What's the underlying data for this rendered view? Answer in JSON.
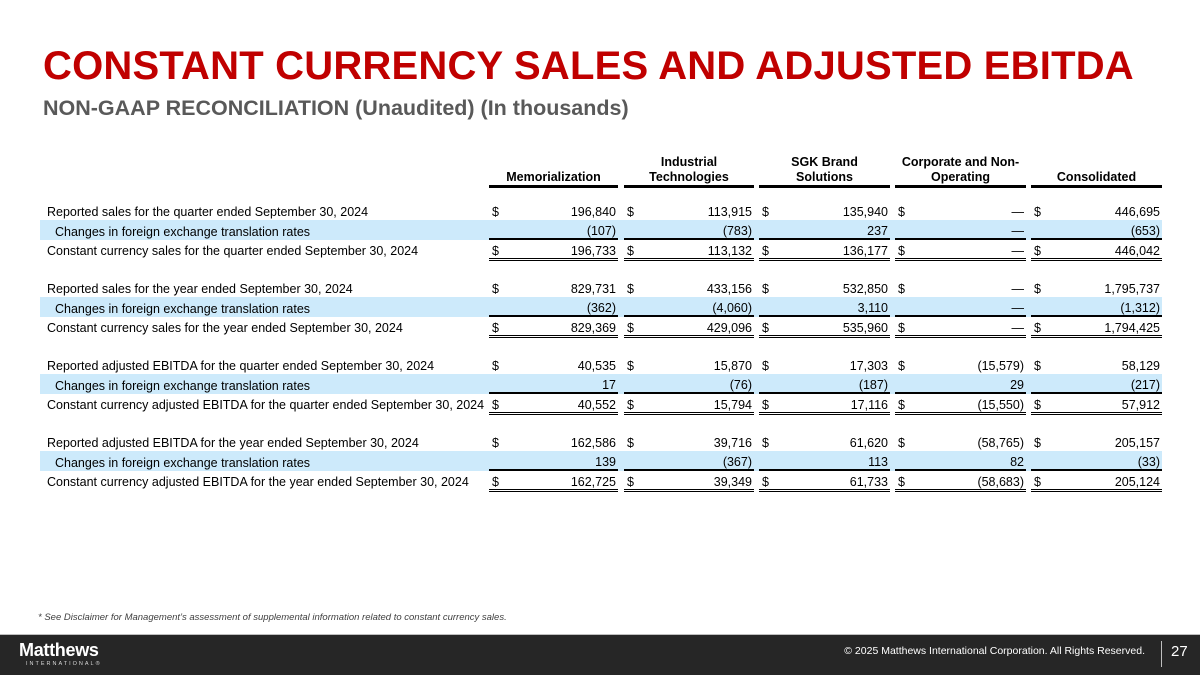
{
  "header": {
    "title": "CONSTANT CURRENCY SALES AND ADJUSTED EBITDA",
    "subtitle": "NON-GAAP RECONCILIATION (Unaudited) (In thousands)"
  },
  "table": {
    "columns": [
      {
        "label": "Memorialization"
      },
      {
        "label": "Industrial\nTechnologies"
      },
      {
        "label": "SGK Brand\nSolutions"
      },
      {
        "label": "Corporate and Non-\nOperating"
      },
      {
        "label": "Consolidated"
      }
    ],
    "sections": [
      {
        "rows": [
          {
            "label": "Reported sales for the quarter ended September 30, 2024",
            "type": "reported",
            "values": [
              "196,840",
              "113,915",
              "135,940",
              "—",
              "446,695"
            ]
          },
          {
            "label": "Changes in foreign exchange translation rates",
            "type": "change",
            "values": [
              "(107)",
              "(783)",
              "237",
              "—",
              "(653)"
            ]
          },
          {
            "label": "Constant currency sales for the quarter ended September 30, 2024",
            "type": "total",
            "values": [
              "196,733",
              "113,132",
              "136,177",
              "—",
              "446,042"
            ]
          }
        ]
      },
      {
        "rows": [
          {
            "label": "Reported sales for the year ended September 30, 2024",
            "type": "reported",
            "values": [
              "829,731",
              "433,156",
              "532,850",
              "—",
              "1,795,737"
            ]
          },
          {
            "label": "Changes in foreign exchange translation rates",
            "type": "change",
            "values": [
              "(362)",
              "(4,060)",
              "3,110",
              "—",
              "(1,312)"
            ]
          },
          {
            "label": "Constant currency sales for the year ended September 30, 2024",
            "type": "total",
            "values": [
              "829,369",
              "429,096",
              "535,960",
              "—",
              "1,794,425"
            ]
          }
        ]
      },
      {
        "rows": [
          {
            "label": "Reported adjusted EBITDA for the quarter ended September 30, 2024",
            "type": "reported",
            "values": [
              "40,535",
              "15,870",
              "17,303",
              "(15,579)",
              "58,129"
            ]
          },
          {
            "label": "Changes in foreign exchange translation rates",
            "type": "change",
            "values": [
              "17",
              "(76)",
              "(187)",
              "29",
              "(217)"
            ]
          },
          {
            "label": "Constant currency adjusted EBITDA for the quarter ended September 30, 2024",
            "type": "total",
            "values": [
              "40,552",
              "15,794",
              "17,116",
              "(15,550)",
              "57,912"
            ]
          }
        ]
      },
      {
        "rows": [
          {
            "label": "Reported adjusted EBITDA for the year ended September 30, 2024",
            "type": "reported",
            "values": [
              "162,586",
              "39,716",
              "61,620",
              "(58,765)",
              "205,157"
            ]
          },
          {
            "label": "Changes in foreign exchange translation rates",
            "type": "change",
            "values": [
              "139",
              "(367)",
              "113",
              "82",
              "(33)"
            ]
          },
          {
            "label": "Constant currency adjusted EBITDA for the year ended September 30, 2024",
            "type": "total",
            "values": [
              "162,725",
              "39,349",
              "61,733",
              "(58,683)",
              "205,124"
            ]
          }
        ]
      }
    ],
    "currency_symbol": "$"
  },
  "footnote": "* See Disclaimer for Management’s assessment of supplemental information related to constant currency sales.",
  "footer": {
    "logo_main": "Matthews",
    "logo_sub": "INTERNATIONAL®",
    "copyright": "© 2025 Matthews International Corporation. All Rights Reserved.",
    "page_number": "27"
  },
  "colors": {
    "title": "#c00000",
    "subtitle": "#595959",
    "row_highlight": "#cdeafb",
    "footer_bg": "#262626"
  }
}
